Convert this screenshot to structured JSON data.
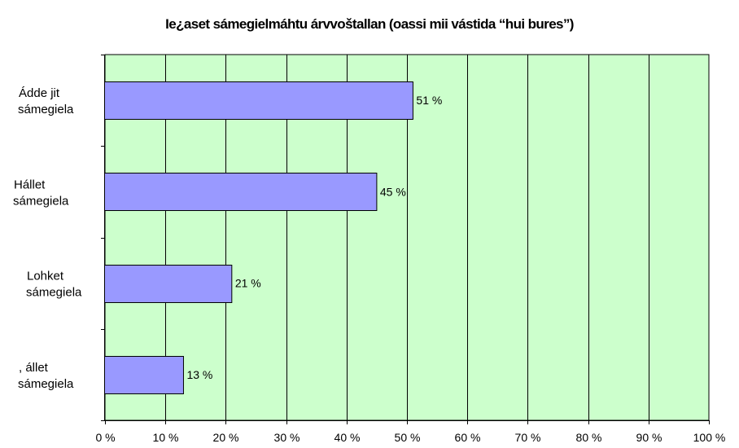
{
  "chart_data": {
    "type": "bar",
    "orientation": "horizontal",
    "title": "Ie¿aset sámegielmáhtu árvvoštallan (oassi mii vástida “hui bures”)",
    "categories": [
      [
        "Ádde jit",
        "sámegiela"
      ],
      [
        "Hállet",
        "sámegiela"
      ],
      [
        "Lohket",
        "sámegiela"
      ],
      [
        ", állet",
        "sámegiela"
      ]
    ],
    "values": [
      51,
      45,
      21,
      13
    ],
    "value_labels": [
      "51 %",
      "45 %",
      "21 %",
      "13 %"
    ],
    "xlim": [
      0,
      100
    ],
    "x_ticks": [
      0,
      10,
      20,
      30,
      40,
      50,
      60,
      70,
      80,
      90,
      100
    ],
    "x_tick_labels": [
      "0 %",
      "10 %",
      "20 %",
      "30 %",
      "40 %",
      "50 %",
      "60 %",
      "70 %",
      "80 %",
      "90 %",
      "100 %"
    ],
    "xlabel": "",
    "ylabel": "",
    "grid": "vertical",
    "legend": "none",
    "colors": {
      "plot_background": "#ccffcc",
      "bar_fill": "#9999ff",
      "bar_stroke": "#000000",
      "grid": "#000000"
    }
  }
}
